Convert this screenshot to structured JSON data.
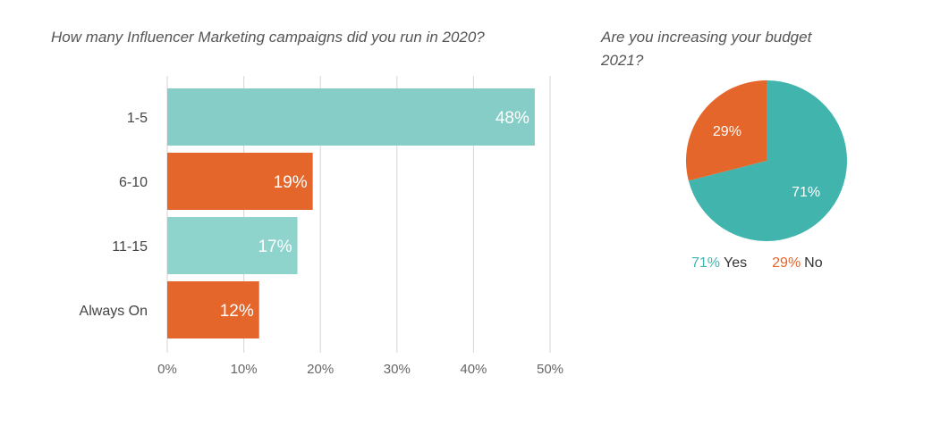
{
  "chart_data": [
    {
      "type": "bar",
      "orientation": "horizontal",
      "title": "How many Influencer Marketing campaigns did you run in 2020?",
      "categories": [
        "1-5",
        "6-10",
        "11-15",
        "Always On"
      ],
      "values": [
        48,
        19,
        17,
        12
      ],
      "data_labels": [
        "48%",
        "19%",
        "17%",
        "12%"
      ],
      "bar_colors": [
        "#85cdc6",
        "#e5662a",
        "#8fd4cc",
        "#e5662a"
      ],
      "xlim": [
        0,
        50
      ],
      "xticks": [
        0,
        10,
        20,
        30,
        40,
        50
      ],
      "xtick_labels": [
        "0%",
        "10%",
        "20%",
        "30%",
        "40%",
        "50%"
      ],
      "grid": "vertical",
      "xlabel": "",
      "ylabel": ""
    },
    {
      "type": "pie",
      "title": "Are you increasing your budget 2021?",
      "title_lines": [
        "Are you increasing your budget",
        "2021?"
      ],
      "slices": [
        {
          "name": "Yes",
          "value": 71,
          "label": "71%",
          "color": "#41b5ad"
        },
        {
          "name": "No",
          "value": 29,
          "label": "29%",
          "color": "#e5662a"
        }
      ],
      "legend": {
        "placement": "bottom",
        "items": [
          {
            "value": "71%",
            "name": "Yes",
            "color": "#41b5ad"
          },
          {
            "value": "29%",
            "name": "No",
            "color": "#e5662a"
          }
        ]
      }
    }
  ]
}
